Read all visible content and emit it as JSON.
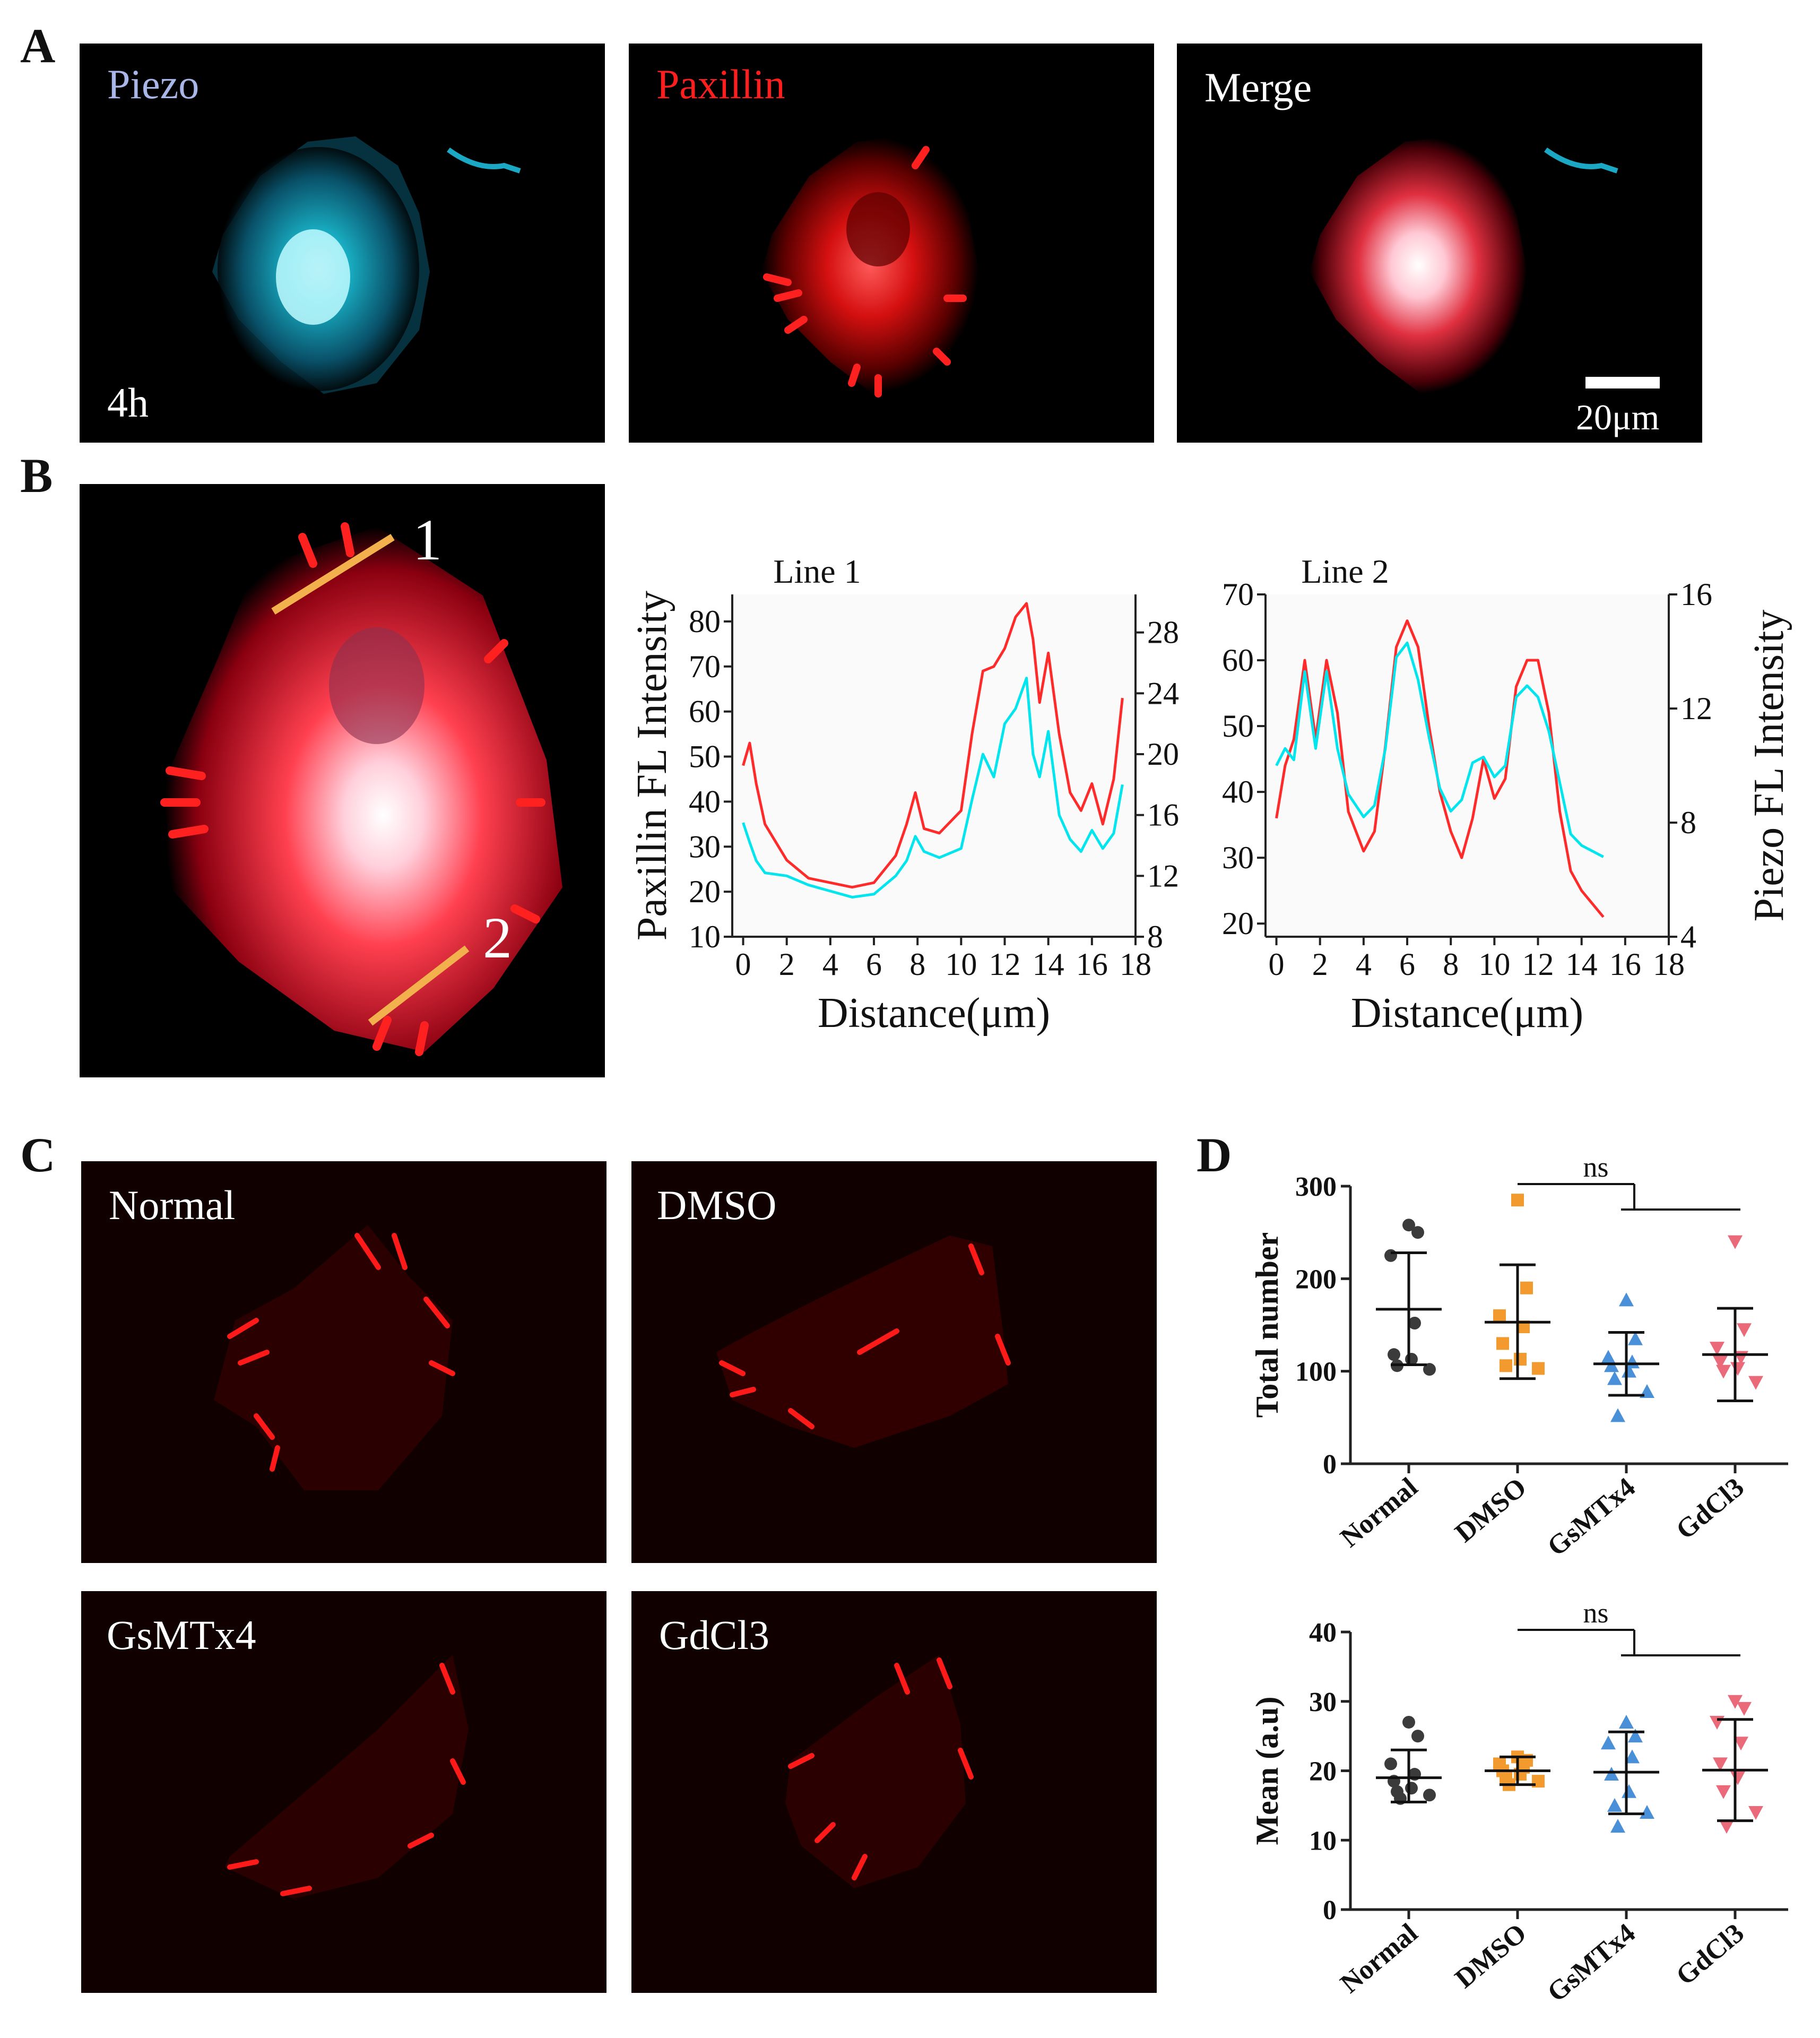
{
  "panel_labels": {
    "a": "A",
    "b": "B",
    "c": "C",
    "d": "D"
  },
  "panel_a": {
    "channels": [
      {
        "label": "Piezo",
        "color": "#a9b6e8"
      },
      {
        "label": "Paxillin",
        "color": "#ff1e1e"
      },
      {
        "label": "Merge",
        "color": "#ffffff"
      }
    ],
    "time_label": "4h",
    "scale_bar": "20μm"
  },
  "panel_b": {
    "line_markers": [
      "1",
      "2"
    ],
    "line_color": "#f2b14c"
  },
  "panel_c": {
    "conditions": [
      "Normal",
      "DMSO",
      "GsMTx4",
      "GdCl3"
    ]
  },
  "chart_data": [
    {
      "type": "line",
      "title": "Line 1",
      "xlabel": "Distance(μm)",
      "ylabel": "Paxillin FL Intensity",
      "xlim": [
        -0.5,
        18
      ],
      "ylim": [
        10,
        86
      ],
      "y2lim": [
        8,
        30.5
      ],
      "x_ticks": [
        0,
        2,
        4,
        6,
        8,
        10,
        12,
        14,
        16,
        18
      ],
      "y_ticks": [
        10,
        20,
        30,
        40,
        50,
        60,
        70,
        80
      ],
      "y2_ticks": [
        8,
        12,
        16,
        20,
        24,
        28
      ],
      "series": [
        {
          "color": "#ff2a2a",
          "axis": "left",
          "x": [
            0,
            0.3,
            0.6,
            1,
            2,
            3,
            4,
            5,
            6,
            7,
            7.5,
            7.9,
            8.3,
            9,
            10,
            10.5,
            11,
            11.5,
            12,
            12.5,
            13,
            13.3,
            13.6,
            14,
            14.5,
            15,
            15.5,
            16,
            16.5,
            17,
            17.4
          ],
          "y": [
            48,
            53,
            44,
            35,
            27,
            23,
            22,
            21,
            22,
            28,
            35,
            42,
            34,
            33,
            38,
            55,
            69,
            70,
            74,
            81,
            84,
            76,
            62,
            73,
            55,
            42,
            38,
            44,
            35,
            45,
            63
          ]
        },
        {
          "color": "#00e5ee",
          "axis": "right",
          "x": [
            0,
            0.3,
            0.6,
            1,
            2,
            3,
            4,
            5,
            6,
            7,
            7.5,
            7.9,
            8.3,
            9,
            10,
            10.5,
            11,
            11.5,
            12,
            12.5,
            13,
            13.3,
            13.6,
            14,
            14.5,
            15,
            15.5,
            16,
            16.5,
            17,
            17.4
          ],
          "y": [
            15.5,
            14.2,
            13,
            12.2,
            12,
            11.4,
            11,
            10.6,
            10.8,
            12,
            13,
            14.6,
            13.6,
            13.2,
            13.8,
            17,
            20,
            18.5,
            22,
            23,
            25,
            20,
            18.5,
            21.5,
            16,
            14.4,
            13.6,
            15,
            13.8,
            14.8,
            18
          ]
        }
      ]
    },
    {
      "type": "line",
      "title": "Line 2",
      "xlabel": "Distance(μm)",
      "ylabel": "Piezo FL Intensity",
      "xlim": [
        -0.5,
        18
      ],
      "ylim": [
        18,
        70
      ],
      "y2lim": [
        4,
        16
      ],
      "x_ticks": [
        0,
        2,
        4,
        6,
        8,
        10,
        12,
        14,
        16,
        18
      ],
      "y_ticks": [
        20,
        30,
        40,
        50,
        60,
        70
      ],
      "y2_ticks": [
        4,
        8,
        12,
        16
      ],
      "series": [
        {
          "color": "#ff2a2a",
          "axis": "left",
          "x": [
            0,
            0.4,
            0.8,
            1.3,
            1.8,
            2.3,
            2.8,
            3.3,
            4,
            4.5,
            5,
            5.5,
            6,
            6.5,
            7,
            7.5,
            8,
            8.5,
            9,
            9.5,
            10,
            10.5,
            11,
            11.5,
            12,
            12.5,
            13,
            13.5,
            14,
            14.5,
            15
          ],
          "y": [
            36,
            44,
            48,
            60,
            48,
            60,
            52,
            37,
            31,
            34,
            47,
            62,
            66,
            62,
            50,
            40,
            34,
            30,
            36,
            45,
            39,
            42,
            56,
            60,
            60,
            52,
            37,
            28,
            25,
            23,
            21
          ]
        },
        {
          "color": "#00e5ee",
          "axis": "right",
          "x": [
            0,
            0.4,
            0.8,
            1.3,
            1.8,
            2.3,
            2.8,
            3.3,
            4,
            4.5,
            5,
            5.5,
            6,
            6.5,
            7,
            7.5,
            8,
            8.5,
            9,
            9.5,
            10,
            10.5,
            11,
            11.5,
            12,
            12.5,
            13,
            13.5,
            14,
            14.5,
            15
          ],
          "y": [
            10,
            10.6,
            10.2,
            13.3,
            10.6,
            13.3,
            10.6,
            9,
            8.2,
            8.6,
            10.6,
            13.8,
            14.3,
            13,
            11,
            9.2,
            8.4,
            8.8,
            10.1,
            10.3,
            9.6,
            10,
            12.4,
            12.8,
            12.4,
            11.2,
            9.4,
            7.6,
            7.2,
            7,
            6.8
          ]
        }
      ]
    },
    {
      "type": "scatter",
      "xlabel": "",
      "ylabel": "Total number",
      "categories": [
        "Normal",
        "DMSO",
        "GsMTx4",
        "GdCl3"
      ],
      "ylim": [
        0,
        300
      ],
      "y_ticks": [
        0,
        100,
        200,
        300
      ],
      "significance": "ns",
      "groups": [
        {
          "name": "Normal",
          "color": "#3b3b3b",
          "marker": "circle",
          "mean": 167,
          "sd_low": 107,
          "sd_high": 228,
          "points": [
            258,
            250,
            225,
            152,
            118,
            113,
            106,
            102
          ]
        },
        {
          "name": "DMSO",
          "color": "#f39a2e",
          "marker": "square",
          "mean": 153,
          "sd_low": 92,
          "sd_high": 215,
          "points": [
            285,
            190,
            160,
            148,
            130,
            113,
            106,
            103
          ]
        },
        {
          "name": "GsMTx4",
          "color": "#4a90d9",
          "marker": "triangle-up",
          "mean": 108,
          "sd_low": 74,
          "sd_high": 142,
          "points": [
            177,
            135,
            115,
            110,
            106,
            100,
            92,
            78,
            52
          ]
        },
        {
          "name": "GdCl3",
          "color": "#ea6a7a",
          "marker": "triangle-down",
          "mean": 118,
          "sd_low": 68,
          "sd_high": 168,
          "points": [
            240,
            145,
            125,
            115,
            110,
            103,
            100,
            88
          ]
        }
      ]
    },
    {
      "type": "scatter",
      "xlabel": "",
      "ylabel": "Mean (a.u)",
      "categories": [
        "Normal",
        "DMSO",
        "GsMTx4",
        "GdCl3"
      ],
      "ylim": [
        0,
        40
      ],
      "y_ticks": [
        0,
        10,
        20,
        30,
        40
      ],
      "significance": "ns",
      "groups": [
        {
          "name": "Normal",
          "color": "#3b3b3b",
          "marker": "circle",
          "mean": 19,
          "sd_low": 15.5,
          "sd_high": 23,
          "points": [
            27,
            25,
            21,
            19.5,
            18.5,
            17.5,
            17,
            16.5,
            16
          ]
        },
        {
          "name": "DMSO",
          "color": "#f39a2e",
          "marker": "square",
          "mean": 20,
          "sd_low": 18,
          "sd_high": 22,
          "points": [
            22,
            21.5,
            21,
            20.5,
            20,
            19.5,
            19,
            18.5,
            18
          ]
        },
        {
          "name": "GsMTx4",
          "color": "#4a90d9",
          "marker": "triangle-up",
          "mean": 19.8,
          "sd_low": 13.8,
          "sd_high": 25.6,
          "points": [
            27,
            25,
            24,
            22,
            19.5,
            17,
            15,
            14,
            12
          ]
        },
        {
          "name": "GdCl3",
          "color": "#ea6a7a",
          "marker": "triangle-down",
          "mean": 20.1,
          "sd_low": 12.8,
          "sd_high": 27.4,
          "points": [
            30,
            29,
            27,
            24,
            21,
            19,
            17,
            14,
            12
          ]
        }
      ]
    }
  ]
}
